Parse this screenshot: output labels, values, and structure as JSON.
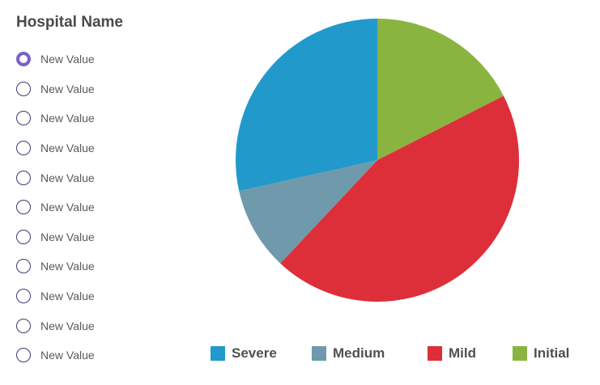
{
  "filter": {
    "title": "Hospital Name",
    "selected_index": 0,
    "options": [
      "New Value",
      "New Value",
      "New Value",
      "New Value",
      "New Value",
      "New Value",
      "New Value",
      "New Value",
      "New Value",
      "New Value",
      "New Value"
    ]
  },
  "chart_data": {
    "type": "pie",
    "title": "",
    "start": "top",
    "direction": "clockwise",
    "legend_position": "bottom",
    "slices": [
      {
        "label": "Initial",
        "value": 17.5,
        "color": "#8ab440"
      },
      {
        "label": "Mild",
        "value": 44.5,
        "color": "#dd2f39"
      },
      {
        "label": "Medium",
        "value": 9.5,
        "color": "#6f9aab"
      },
      {
        "label": "Severe",
        "value": 28.5,
        "color": "#2199cb"
      }
    ],
    "legend_order": [
      "Severe",
      "Medium",
      "Mild",
      "Initial"
    ]
  }
}
